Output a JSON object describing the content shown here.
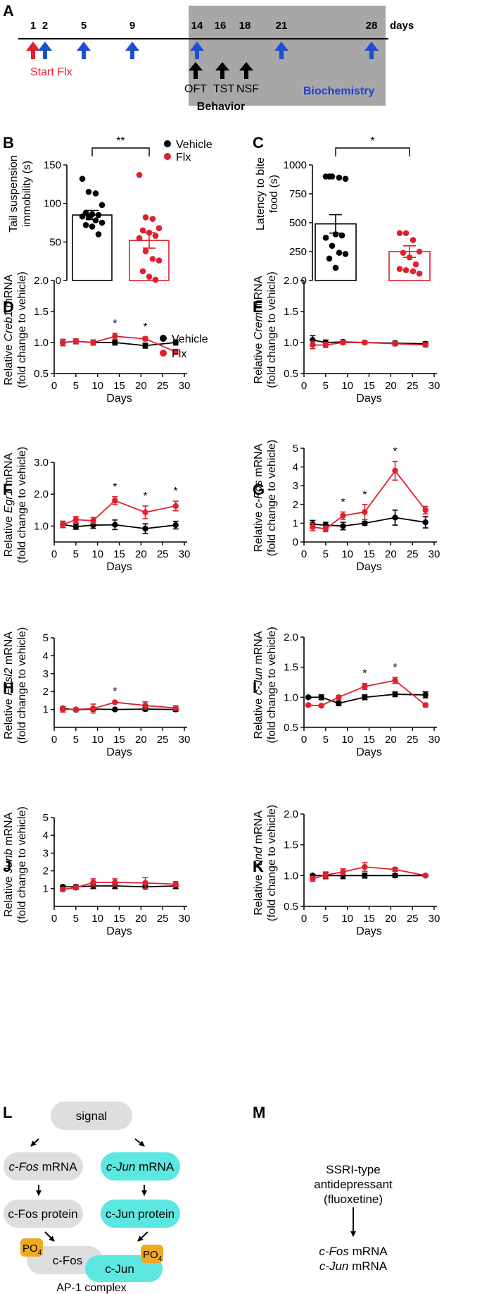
{
  "colors": {
    "vehicle": "#000000",
    "flx": "#e0202e",
    "axis": "#000000",
    "shade": "#a7a7a7",
    "start": "#e0202e",
    "arrow_blue": "#1f4fcf",
    "bio": "#1f3fd0",
    "gray_pill": "#dedede",
    "cyan_pill": "#5ce8e0",
    "po4": "#f0a922"
  },
  "panel_a": {
    "letter": "A",
    "days_label": "days",
    "ticks": [
      "1",
      "2",
      "5",
      "9",
      "14",
      "16",
      "18",
      "21",
      "28"
    ],
    "start_label": "Start Flx",
    "behavior_tests": [
      "OFT",
      "TST",
      "NSF"
    ],
    "behavior_label": "Behavior",
    "biochem_label": "Biochemistry"
  },
  "legend": {
    "vehicle": "Vehicle",
    "flx": "Flx"
  },
  "chart_data": [
    {
      "id": "B",
      "type": "bar",
      "title": "",
      "ylabel": "Tail suspension immobility (s)",
      "ylim": [
        0,
        150
      ],
      "yticks": [
        "0",
        "50",
        "100",
        "150"
      ],
      "categories": [
        "Vehicle",
        "Flx"
      ],
      "values": [
        85,
        52
      ],
      "errors": [
        6,
        10
      ],
      "points": [
        [
          132,
          115,
          113,
          98,
          88,
          86,
          85,
          83,
          82,
          78,
          75,
          72,
          70,
          60
        ],
        [
          137,
          82,
          80,
          68,
          65,
          62,
          58,
          55,
          38,
          28,
          26,
          12,
          5,
          1
        ]
      ],
      "significance": "**"
    },
    {
      "id": "C",
      "type": "bar",
      "title": "",
      "ylabel": "Latency to bite food (s)",
      "ylim": [
        0,
        1000
      ],
      "yticks": [
        "0",
        "250",
        "500",
        "750",
        "1000"
      ],
      "categories": [
        "Vehicle",
        "Flx"
      ],
      "values": [
        490,
        250
      ],
      "errors": [
        80,
        50
      ],
      "points": [
        [
          900,
          900,
          890,
          880,
          900,
          400,
          390,
          370,
          300,
          240,
          230,
          190,
          110
        ],
        [
          410,
          410,
          350,
          250,
          240,
          200,
          140,
          100,
          90,
          80,
          60
        ]
      ],
      "significance": "*"
    },
    {
      "id": "D",
      "type": "line",
      "gene": "Creb1",
      "ylabel_pre": "Relative ",
      "ylabel_post": " mRNA",
      "ylabel2": "(fold change to vehicle)",
      "xlabel": "Days",
      "xlim": [
        0,
        30
      ],
      "xticks": [
        "0",
        "5",
        "10",
        "15",
        "20",
        "25",
        "30"
      ],
      "ylim": [
        0.5,
        2.0
      ],
      "yticks": [
        "0.5",
        "1.0",
        "1.5",
        "2.0"
      ],
      "x": [
        2,
        5,
        9,
        14,
        21,
        28
      ],
      "series": [
        {
          "name": "Vehicle",
          "values": [
            1.0,
            1.02,
            1.0,
            1.0,
            0.95,
            1.0
          ],
          "errors": [
            0.05,
            0.04,
            0.04,
            0.04,
            0.04,
            0.04
          ]
        },
        {
          "name": "Flx",
          "values": [
            1.0,
            1.02,
            1.0,
            1.1,
            1.06,
            0.85
          ],
          "errors": [
            0.05,
            0.04,
            0.04,
            0.05,
            0.03,
            0.04
          ]
        }
      ],
      "stars": [
        14,
        21
      ]
    },
    {
      "id": "E",
      "type": "line",
      "gene": "Crem",
      "ylabel_pre": "Relative ",
      "ylabel_post": " mRNA",
      "ylabel2": "(fold change to vehicle)",
      "xlabel": "Days",
      "xlim": [
        0,
        30
      ],
      "xticks": [
        "0",
        "5",
        "10",
        "15",
        "20",
        "25",
        "30"
      ],
      "ylim": [
        0.5,
        2.0
      ],
      "yticks": [
        "0.5",
        "1.0",
        "1.5",
        "2.0"
      ],
      "x": [
        2,
        5,
        9,
        14,
        21,
        28
      ],
      "series": [
        {
          "name": "Vehicle",
          "values": [
            1.04,
            1.0,
            1.01,
            1.0,
            0.99,
            0.98
          ],
          "errors": [
            0.07,
            0.04,
            0.03,
            0.02,
            0.03,
            0.03
          ]
        },
        {
          "name": "Flx",
          "values": [
            0.96,
            0.96,
            1.0,
            1.0,
            0.98,
            0.96
          ],
          "errors": [
            0.06,
            0.04,
            0.03,
            0.02,
            0.03,
            0.03
          ]
        }
      ],
      "stars": []
    },
    {
      "id": "F",
      "type": "line",
      "gene": "Egr1",
      "ylabel_pre": "Relative ",
      "ylabel_post": " mRNA",
      "ylabel2": "(fold change to vehicle)",
      "xlabel": "Days",
      "xlim": [
        0,
        30
      ],
      "xticks": [
        "0",
        "5",
        "10",
        "15",
        "20",
        "25",
        "30"
      ],
      "ylim": [
        0.5,
        3.0
      ],
      "yticks": [
        "1.0",
        "2.0",
        "3.0"
      ],
      "x": [
        2,
        5,
        9,
        14,
        21,
        28
      ],
      "series": [
        {
          "name": "Vehicle",
          "values": [
            1.05,
            0.98,
            1.03,
            1.04,
            0.92,
            1.03
          ],
          "errors": [
            0.1,
            0.08,
            0.1,
            0.15,
            0.15,
            0.12
          ]
        },
        {
          "name": "Flx",
          "values": [
            1.05,
            1.2,
            1.17,
            1.8,
            1.43,
            1.63
          ],
          "errors": [
            0.1,
            0.1,
            0.1,
            0.12,
            0.2,
            0.15
          ]
        }
      ],
      "stars": [
        14,
        21,
        28
      ]
    },
    {
      "id": "G",
      "type": "line",
      "gene": "c-Fos",
      "ylabel_pre": "Relative ",
      "ylabel_post": " mRNA",
      "ylabel2": "(fold change to vehicle)",
      "xlabel": "Days",
      "xlim": [
        0,
        30
      ],
      "xticks": [
        "0",
        "5",
        "10",
        "15",
        "20",
        "25",
        "30"
      ],
      "ylim": [
        0,
        5
      ],
      "yticks": [
        "0",
        "1",
        "2",
        "3",
        "4",
        "5"
      ],
      "x": [
        2,
        5,
        9,
        14,
        21,
        28
      ],
      "series": [
        {
          "name": "Vehicle",
          "values": [
            0.95,
            0.9,
            0.85,
            1.0,
            1.3,
            1.05
          ],
          "errors": [
            0.2,
            0.15,
            0.2,
            0.1,
            0.4,
            0.3
          ]
        },
        {
          "name": "Flx",
          "values": [
            0.8,
            0.7,
            1.4,
            1.6,
            3.8,
            1.7
          ],
          "errors": [
            0.2,
            0.15,
            0.2,
            0.4,
            0.5,
            0.2
          ]
        }
      ],
      "stars": [
        9,
        14,
        21
      ]
    },
    {
      "id": "H",
      "type": "line",
      "gene": "Fosl2",
      "ylabel_pre": "Relative ",
      "ylabel_post": " mRNA",
      "ylabel2": "(fold change to vehicle)",
      "xlabel": "Days",
      "xlim": [
        0,
        30
      ],
      "xticks": [
        "0",
        "5",
        "10",
        "15",
        "20",
        "25",
        "30"
      ],
      "ylim": [
        0,
        5
      ],
      "yticks": [
        "1",
        "2",
        "3",
        "4",
        "5"
      ],
      "x": [
        2,
        5,
        9,
        14,
        21,
        28
      ],
      "series": [
        {
          "name": "Vehicle",
          "values": [
            1.05,
            0.98,
            1.02,
            1.0,
            1.02,
            1.0
          ],
          "errors": [
            0.1,
            0.05,
            0.1,
            0.05,
            0.1,
            0.1
          ]
        },
        {
          "name": "Flx",
          "values": [
            1.0,
            1.0,
            1.05,
            1.4,
            1.22,
            1.08
          ],
          "errors": [
            0.15,
            0.05,
            0.25,
            0.06,
            0.2,
            0.12
          ]
        }
      ],
      "stars": [
        14
      ]
    },
    {
      "id": "I",
      "type": "line",
      "gene": "c-Jun",
      "ylabel_pre": "Relative ",
      "ylabel_post": " mRNA",
      "ylabel2": "(fold change to vehicle)",
      "xlabel": "Days",
      "xlim": [
        0,
        30
      ],
      "xticks": [
        "0",
        "5",
        "10",
        "15",
        "20",
        "25",
        "30"
      ],
      "ylim": [
        0.5,
        2.0
      ],
      "yticks": [
        "0.5",
        "1.0",
        "1.5",
        "2.0"
      ],
      "x": [
        1,
        4,
        8,
        14,
        21,
        28
      ],
      "series": [
        {
          "name": "Vehicle",
          "values": [
            1.0,
            1.0,
            0.9,
            1.0,
            1.05,
            1.04
          ],
          "errors": [
            0.02,
            0.04,
            0.04,
            0.04,
            0.04,
            0.05
          ]
        },
        {
          "name": "Flx",
          "values": [
            0.87,
            0.86,
            1.0,
            1.18,
            1.28,
            0.87
          ],
          "errors": [
            0.02,
            0.02,
            0.03,
            0.05,
            0.05,
            0.03
          ]
        }
      ],
      "stars": [
        14,
        21
      ]
    },
    {
      "id": "J",
      "type": "line",
      "gene": "Junb",
      "ylabel_pre": "Relative ",
      "ylabel_post": " mRNA",
      "ylabel2": "(fold change to vehicle)",
      "xlabel": "Days",
      "xlim": [
        0,
        30
      ],
      "xticks": [
        "0",
        "5",
        "10",
        "15",
        "20",
        "25",
        "30"
      ],
      "ylim": [
        0,
        5
      ],
      "yticks": [
        "1",
        "2",
        "3",
        "4",
        "5"
      ],
      "x": [
        2,
        5,
        9,
        14,
        21,
        28
      ],
      "series": [
        {
          "name": "Vehicle",
          "values": [
            1.1,
            1.1,
            1.15,
            1.15,
            1.1,
            1.15
          ],
          "errors": [
            0.08,
            0.1,
            0.15,
            0.15,
            0.1,
            0.15
          ]
        },
        {
          "name": "Flx",
          "values": [
            0.95,
            1.05,
            1.35,
            1.35,
            1.32,
            1.25
          ],
          "errors": [
            0.1,
            0.1,
            0.2,
            0.2,
            0.3,
            0.15
          ]
        }
      ],
      "stars": []
    },
    {
      "id": "K",
      "type": "line",
      "gene": "Jund",
      "ylabel_pre": "Relative ",
      "ylabel_post": " mRNA",
      "ylabel2": "(fold change to vehicle)",
      "xlabel": "Days",
      "xlim": [
        0,
        30
      ],
      "xticks": [
        "0",
        "5",
        "10",
        "15",
        "20",
        "25",
        "30"
      ],
      "ylim": [
        0.5,
        2.0
      ],
      "yticks": [
        "0.5",
        "1.0",
        "1.5",
        "2.0"
      ],
      "x": [
        2,
        5,
        9,
        14,
        21,
        28
      ],
      "series": [
        {
          "name": "Vehicle",
          "values": [
            1.0,
            1.0,
            1.0,
            1.0,
            1.0,
            1.0
          ],
          "errors": [
            0.02,
            0.05,
            0.05,
            0.04,
            0.03,
            0.02
          ]
        },
        {
          "name": "Flx",
          "values": [
            0.95,
            1.01,
            1.06,
            1.14,
            1.1,
            1.0
          ],
          "errors": [
            0.04,
            0.05,
            0.05,
            0.07,
            0.03,
            0.02
          ]
        }
      ],
      "stars": []
    }
  ],
  "panel_l": {
    "letter": "L",
    "signal": "signal",
    "cfos_mrna_gene": "c-Fos",
    "cjun_mrna_gene": "c-Jun",
    "mrna_word": " mRNA",
    "cfos_protein": "c-Fos protein",
    "cjun_protein": "c-Jun protein",
    "po4": "PO",
    "po4_sub": "4",
    "cfos": "c-Fos",
    "cjun": "c-Jun",
    "complex": "AP-1 complex"
  },
  "panel_m": {
    "letter": "M",
    "line1": "SSRI-type",
    "line2": "antidepressant",
    "line3": "(fluoxetine)",
    "gene1": "c-Fos",
    "gene2": "c-Jun",
    "mrna_word": " mRNA"
  }
}
